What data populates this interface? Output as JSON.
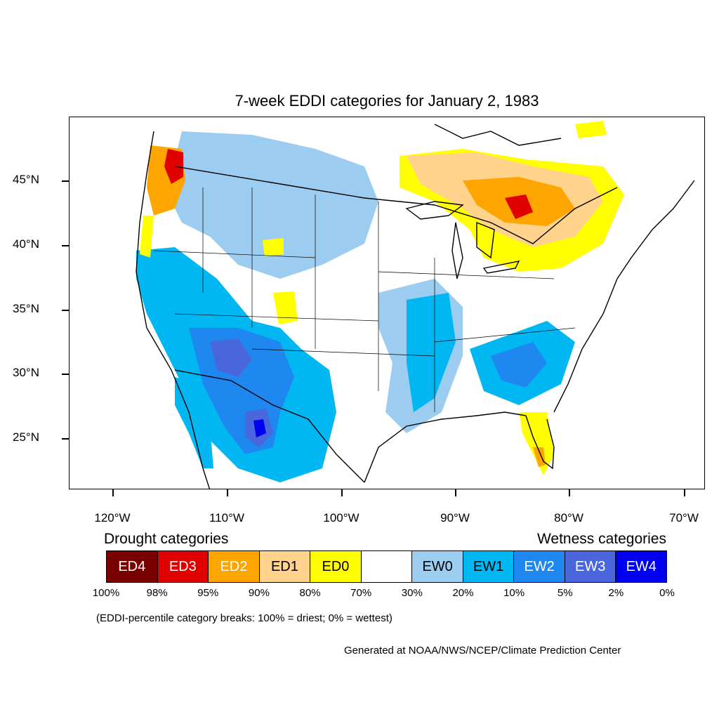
{
  "title": "7-week EDDI categories for January 2, 1983",
  "map": {
    "lat_labels": [
      "45°N",
      "40°N",
      "35°N",
      "30°N",
      "25°N"
    ],
    "lon_labels": [
      "120°W",
      "110°W",
      "100°W",
      "90°W",
      "80°W",
      "70°W"
    ],
    "regions": [
      {
        "name": "pacific-northwest-coast",
        "category": "ED3"
      },
      {
        "name": "great-lakes-ontario-quebec",
        "category": "ED2"
      },
      {
        "name": "southwest-mexico-highlands",
        "category": "EW2"
      },
      {
        "name": "northern-rockies-plains",
        "category": "EW0"
      },
      {
        "name": "lower-mississippi-valley",
        "category": "EW1"
      },
      {
        "name": "southeast-georgia",
        "category": "EW2"
      },
      {
        "name": "florida-peninsula",
        "category": "ED0"
      },
      {
        "name": "california-great-basin",
        "category": "EW1"
      }
    ]
  },
  "legend": {
    "drought_heading": "Drought categories",
    "wetness_heading": "Wetness categories",
    "categories": [
      {
        "label": "ED4",
        "color": "#7a0000",
        "text_color": "#ffffff"
      },
      {
        "label": "ED3",
        "color": "#e00000",
        "text_color": "#ffffff"
      },
      {
        "label": "ED2",
        "color": "#ffa500",
        "text_color": "#ffffff"
      },
      {
        "label": "ED1",
        "color": "#ffd38c",
        "text_color": "#000000"
      },
      {
        "label": "ED0",
        "color": "#ffff00",
        "text_color": "#000000"
      },
      {
        "label": "",
        "color": "#ffffff",
        "text_color": "#000000"
      },
      {
        "label": "EW0",
        "color": "#9ccdf0",
        "text_color": "#000000"
      },
      {
        "label": "EW1",
        "color": "#00b7f2",
        "text_color": "#000000"
      },
      {
        "label": "EW2",
        "color": "#1e88f0",
        "text_color": "#ffffff"
      },
      {
        "label": "EW3",
        "color": "#4a66dc",
        "text_color": "#ffffff"
      },
      {
        "label": "EW4",
        "color": "#0000f0",
        "text_color": "#ffffff"
      }
    ],
    "percentiles": [
      "100%",
      "98%",
      "95%",
      "90%",
      "80%",
      "70%",
      "30%",
      "20%",
      "10%",
      "5%",
      "2%",
      "0%"
    ],
    "note": "(EDDI-percentile category breaks: 100% = driest; 0% = wettest)"
  },
  "credit": "Generated at NOAA/NWS/NCEP/Climate Prediction Center"
}
